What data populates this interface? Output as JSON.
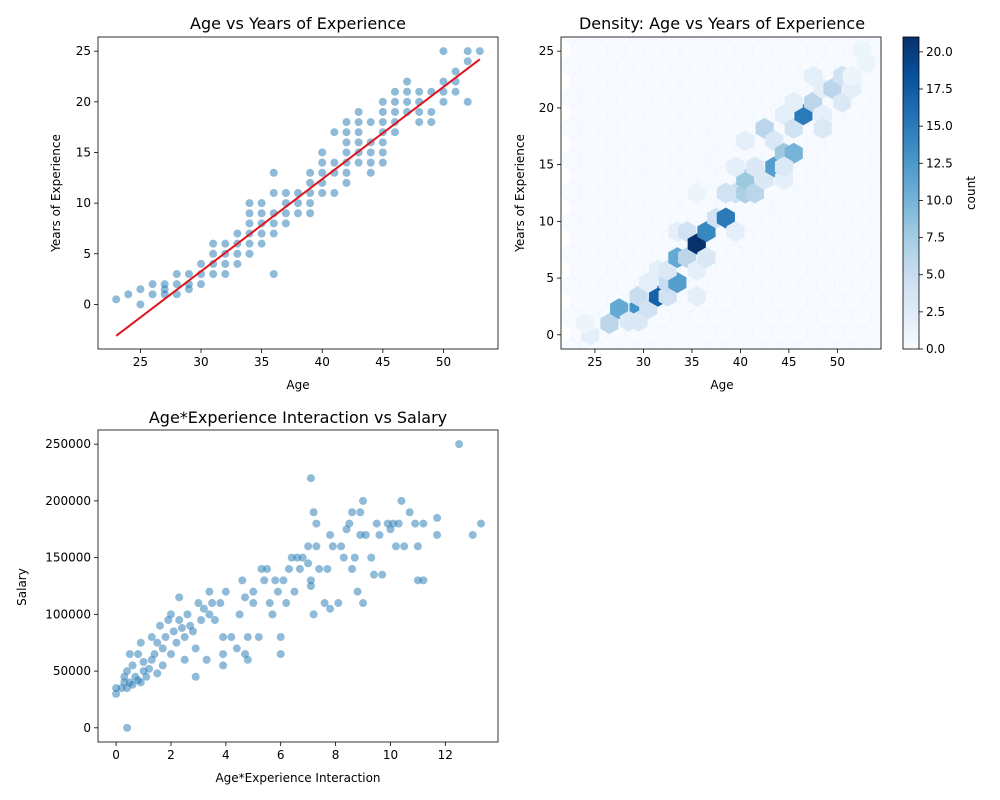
{
  "chart_data": [
    {
      "type": "scatter",
      "title": "Age vs Years of Experience",
      "xlabel": "Age",
      "ylabel": "Years of Experience",
      "xlim": [
        21.5,
        54.5
      ],
      "ylim": [
        -4.4,
        26.4
      ],
      "xticks": [
        25,
        30,
        35,
        40,
        45,
        50
      ],
      "yticks": [
        0,
        5,
        10,
        15,
        20,
        25
      ],
      "grid": false,
      "point_color": "#1f77b4",
      "points": [
        [
          23,
          0.5
        ],
        [
          24,
          1
        ],
        [
          25,
          0
        ],
        [
          25,
          1.5
        ],
        [
          26,
          1
        ],
        [
          26,
          2
        ],
        [
          27,
          1
        ],
        [
          27,
          1.5
        ],
        [
          27,
          2
        ],
        [
          28,
          1
        ],
        [
          28,
          2
        ],
        [
          28,
          3
        ],
        [
          29,
          1.5
        ],
        [
          29,
          2
        ],
        [
          29,
          3
        ],
        [
          30,
          2
        ],
        [
          30,
          3
        ],
        [
          30,
          4
        ],
        [
          31,
          3
        ],
        [
          31,
          4
        ],
        [
          31,
          5
        ],
        [
          31,
          6
        ],
        [
          32,
          3
        ],
        [
          32,
          4
        ],
        [
          32,
          5
        ],
        [
          32,
          6
        ],
        [
          33,
          4
        ],
        [
          33,
          5
        ],
        [
          33,
          6
        ],
        [
          33,
          7
        ],
        [
          34,
          5
        ],
        [
          34,
          6
        ],
        [
          34,
          7
        ],
        [
          34,
          8
        ],
        [
          34,
          9
        ],
        [
          34,
          10
        ],
        [
          35,
          6
        ],
        [
          35,
          7
        ],
        [
          35,
          8
        ],
        [
          35,
          9
        ],
        [
          35,
          10
        ],
        [
          36,
          3
        ],
        [
          36,
          7
        ],
        [
          36,
          8
        ],
        [
          36,
          9
        ],
        [
          36,
          11
        ],
        [
          36,
          13
        ],
        [
          37,
          8
        ],
        [
          37,
          9
        ],
        [
          37,
          10
        ],
        [
          37,
          11
        ],
        [
          38,
          9
        ],
        [
          38,
          10
        ],
        [
          38,
          11
        ],
        [
          39,
          9
        ],
        [
          39,
          10
        ],
        [
          39,
          11
        ],
        [
          39,
          12
        ],
        [
          39,
          13
        ],
        [
          40,
          11
        ],
        [
          40,
          12
        ],
        [
          40,
          13
        ],
        [
          40,
          14
        ],
        [
          40,
          15
        ],
        [
          41,
          11
        ],
        [
          41,
          13
        ],
        [
          41,
          14
        ],
        [
          41,
          17
        ],
        [
          42,
          12
        ],
        [
          42,
          13
        ],
        [
          42,
          14
        ],
        [
          42,
          15
        ],
        [
          42,
          16
        ],
        [
          42,
          17
        ],
        [
          42,
          18
        ],
        [
          43,
          14
        ],
        [
          43,
          15
        ],
        [
          43,
          16
        ],
        [
          43,
          17
        ],
        [
          43,
          18
        ],
        [
          43,
          19
        ],
        [
          44,
          13
        ],
        [
          44,
          14
        ],
        [
          44,
          15
        ],
        [
          44,
          16
        ],
        [
          44,
          18
        ],
        [
          45,
          14
        ],
        [
          45,
          15
        ],
        [
          45,
          16
        ],
        [
          45,
          17
        ],
        [
          45,
          18
        ],
        [
          45,
          19
        ],
        [
          45,
          20
        ],
        [
          46,
          17
        ],
        [
          46,
          18
        ],
        [
          46,
          19
        ],
        [
          46,
          20
        ],
        [
          46,
          21
        ],
        [
          47,
          19
        ],
        [
          47,
          20
        ],
        [
          47,
          21
        ],
        [
          47,
          22
        ],
        [
          48,
          18
        ],
        [
          48,
          19
        ],
        [
          48,
          20
        ],
        [
          48,
          21
        ],
        [
          49,
          18
        ],
        [
          49,
          19
        ],
        [
          49,
          21
        ],
        [
          50,
          20
        ],
        [
          50,
          21
        ],
        [
          50,
          22
        ],
        [
          50,
          25
        ],
        [
          51,
          21
        ],
        [
          51,
          22
        ],
        [
          51,
          23
        ],
        [
          52,
          20
        ],
        [
          52,
          24
        ],
        [
          52,
          25
        ],
        [
          53,
          25
        ]
      ],
      "fit_line": {
        "color": "#e0141e",
        "x": [
          23,
          53
        ],
        "y": [
          -3.1,
          24.2
        ]
      }
    },
    {
      "type": "heatmap",
      "subtype": "hexbin",
      "title": "Density: Age vs Years of Experience",
      "xlabel": "Age",
      "ylabel": "Years of Experience",
      "xlim": [
        21.5,
        54.5
      ],
      "ylim": [
        -1.25,
        26.25
      ],
      "xticks": [
        25,
        30,
        35,
        40,
        45,
        50
      ],
      "yticks": [
        0,
        5,
        10,
        15,
        20,
        25
      ],
      "colorbar": {
        "label": "count",
        "range": [
          0,
          21
        ],
        "ticks": [
          "0.0",
          "2.5",
          "5.0",
          "7.5",
          "10.0",
          "12.5",
          "15.0",
          "17.5",
          "20.0"
        ],
        "colors": [
          "#f7fbff",
          "#deebf7",
          "#c6dbef",
          "#9ecae1",
          "#6baed6",
          "#4292c6",
          "#2171b5",
          "#08519c",
          "#08306b"
        ]
      },
      "cells": [
        [
          24.5,
          0,
          2
        ],
        [
          24,
          1,
          1
        ],
        [
          26.5,
          1,
          6
        ],
        [
          27.5,
          2.3,
          11
        ],
        [
          29.5,
          2.3,
          13
        ],
        [
          28.5,
          1.2,
          3
        ],
        [
          29.5,
          1.2,
          3
        ],
        [
          29.5,
          3.4,
          5
        ],
        [
          30.5,
          2.3,
          4
        ],
        [
          31.5,
          3.4,
          17
        ],
        [
          30.5,
          4.6,
          2
        ],
        [
          32.5,
          3.4,
          4
        ],
        [
          31.5,
          5.7,
          2
        ],
        [
          32.5,
          4.6,
          5
        ],
        [
          33.5,
          4.6,
          12
        ],
        [
          32.5,
          5.7,
          3
        ],
        [
          33.5,
          6.8,
          11
        ],
        [
          34.5,
          6.8,
          6
        ],
        [
          35.5,
          5.7,
          2
        ],
        [
          33.5,
          9.1,
          2
        ],
        [
          34.5,
          9.1,
          4
        ],
        [
          35.5,
          8,
          21
        ],
        [
          36.5,
          9.1,
          14
        ],
        [
          36.5,
          6.8,
          3
        ],
        [
          35.5,
          3.4,
          2
        ],
        [
          35.5,
          12.5,
          1
        ],
        [
          37.5,
          10.3,
          4
        ],
        [
          38.5,
          10.3,
          15
        ],
        [
          39.5,
          9.1,
          2
        ],
        [
          38.5,
          12.5,
          4
        ],
        [
          39.5,
          12.5,
          4
        ],
        [
          40.5,
          12.5,
          7
        ],
        [
          40.5,
          13.7,
          8
        ],
        [
          39.5,
          14.8,
          2
        ],
        [
          40.5,
          17.1,
          2
        ],
        [
          41.5,
          12.5,
          6
        ],
        [
          41.5,
          14.8,
          3
        ],
        [
          42.5,
          13.7,
          3
        ],
        [
          42.5,
          18.2,
          6
        ],
        [
          43.5,
          14.8,
          12
        ],
        [
          43.5,
          17.1,
          3
        ],
        [
          44.5,
          13.7,
          2
        ],
        [
          44.5,
          16,
          8
        ],
        [
          45.5,
          16,
          10
        ],
        [
          44.5,
          14.8,
          3
        ],
        [
          44.5,
          19.4,
          2
        ],
        [
          45.5,
          18.2,
          4
        ],
        [
          46.5,
          19.4,
          15
        ],
        [
          45.5,
          20.5,
          2
        ],
        [
          47.5,
          20.5,
          6
        ],
        [
          47.5,
          22.8,
          2
        ],
        [
          48.5,
          19.4,
          2
        ],
        [
          48.5,
          18.2,
          3
        ],
        [
          48.5,
          21.7,
          2
        ],
        [
          49.5,
          21.7,
          6
        ],
        [
          50.5,
          22.8,
          4
        ],
        [
          50.5,
          20.5,
          3
        ],
        [
          51.5,
          21.7,
          2
        ],
        [
          51.5,
          22.8,
          1
        ],
        [
          52.5,
          25.1,
          1
        ],
        [
          53,
          24,
          1
        ]
      ]
    },
    {
      "type": "scatter",
      "title": "Age*Experience Interaction vs Salary",
      "xlabel": "Age*Experience Interaction",
      "ylabel": "Salary",
      "xlim": [
        -0.66,
        13.92
      ],
      "ylim": [
        -12500,
        262500
      ],
      "xticks": [
        0,
        2,
        4,
        6,
        8,
        10,
        12
      ],
      "yticks": [
        0,
        50000,
        100000,
        150000,
        200000,
        250000
      ],
      "grid": false,
      "point_color": "#1f77b4",
      "points": [
        [
          0,
          30000
        ],
        [
          0,
          35000
        ],
        [
          0.2,
          35000
        ],
        [
          0.3,
          40000
        ],
        [
          0.3,
          45000
        ],
        [
          0.4,
          35000
        ],
        [
          0.4,
          50000
        ],
        [
          0.4,
          0
        ],
        [
          0.5,
          40000
        ],
        [
          0.5,
          65000
        ],
        [
          0.6,
          55000
        ],
        [
          0.6,
          38000
        ],
        [
          0.7,
          45000
        ],
        [
          0.8,
          42000
        ],
        [
          0.8,
          65000
        ],
        [
          0.9,
          40000
        ],
        [
          0.9,
          75000
        ],
        [
          1.0,
          50000
        ],
        [
          1.0,
          58000
        ],
        [
          1.1,
          45000
        ],
        [
          1.2,
          52000
        ],
        [
          1.3,
          60000
        ],
        [
          1.3,
          80000
        ],
        [
          1.4,
          65000
        ],
        [
          1.5,
          48000
        ],
        [
          1.5,
          75000
        ],
        [
          1.6,
          90000
        ],
        [
          1.7,
          55000
        ],
        [
          1.7,
          70000
        ],
        [
          1.8,
          80000
        ],
        [
          1.9,
          95000
        ],
        [
          2.0,
          100000
        ],
        [
          2.0,
          65000
        ],
        [
          2.1,
          85000
        ],
        [
          2.2,
          75000
        ],
        [
          2.3,
          95000
        ],
        [
          2.3,
          115000
        ],
        [
          2.4,
          88000
        ],
        [
          2.5,
          60000
        ],
        [
          2.5,
          80000
        ],
        [
          2.6,
          100000
        ],
        [
          2.7,
          90000
        ],
        [
          2.8,
          85000
        ],
        [
          2.9,
          70000
        ],
        [
          2.9,
          45000
        ],
        [
          3.0,
          110000
        ],
        [
          3.1,
          95000
        ],
        [
          3.2,
          105000
        ],
        [
          3.3,
          60000
        ],
        [
          3.4,
          100000
        ],
        [
          3.4,
          120000
        ],
        [
          3.5,
          110000
        ],
        [
          3.6,
          95000
        ],
        [
          3.8,
          110000
        ],
        [
          3.9,
          80000
        ],
        [
          3.9,
          65000
        ],
        [
          3.9,
          55000
        ],
        [
          4.0,
          120000
        ],
        [
          4.2,
          80000
        ],
        [
          4.4,
          70000
        ],
        [
          4.5,
          100000
        ],
        [
          4.6,
          130000
        ],
        [
          4.7,
          115000
        ],
        [
          4.7,
          65000
        ],
        [
          4.8,
          80000
        ],
        [
          4.8,
          60000
        ],
        [
          5.0,
          110000
        ],
        [
          5.0,
          120000
        ],
        [
          5.2,
          80000
        ],
        [
          5.3,
          140000
        ],
        [
          5.4,
          130000
        ],
        [
          5.5,
          140000
        ],
        [
          5.6,
          110000
        ],
        [
          5.7,
          100000
        ],
        [
          5.8,
          130000
        ],
        [
          5.9,
          120000
        ],
        [
          6.0,
          80000
        ],
        [
          6.0,
          65000
        ],
        [
          6.1,
          130000
        ],
        [
          6.2,
          110000
        ],
        [
          6.3,
          140000
        ],
        [
          6.4,
          150000
        ],
        [
          6.5,
          120000
        ],
        [
          6.6,
          150000
        ],
        [
          6.7,
          140000
        ],
        [
          6.8,
          150000
        ],
        [
          7.0,
          145000
        ],
        [
          7.0,
          160000
        ],
        [
          7.1,
          220000
        ],
        [
          7.1,
          130000
        ],
        [
          7.1,
          125000
        ],
        [
          7.2,
          100000
        ],
        [
          7.2,
          190000
        ],
        [
          7.3,
          180000
        ],
        [
          7.3,
          160000
        ],
        [
          7.4,
          140000
        ],
        [
          7.6,
          110000
        ],
        [
          7.7,
          140000
        ],
        [
          7.8,
          170000
        ],
        [
          7.8,
          105000
        ],
        [
          7.9,
          160000
        ],
        [
          8.1,
          110000
        ],
        [
          8.2,
          160000
        ],
        [
          8.3,
          150000
        ],
        [
          8.4,
          175000
        ],
        [
          8.5,
          180000
        ],
        [
          8.6,
          190000
        ],
        [
          8.6,
          140000
        ],
        [
          8.7,
          150000
        ],
        [
          8.8,
          120000
        ],
        [
          8.9,
          190000
        ],
        [
          8.9,
          170000
        ],
        [
          9.0,
          200000
        ],
        [
          9.0,
          110000
        ],
        [
          9.1,
          170000
        ],
        [
          9.3,
          150000
        ],
        [
          9.4,
          135000
        ],
        [
          9.5,
          180000
        ],
        [
          9.6,
          170000
        ],
        [
          9.7,
          135000
        ],
        [
          9.9,
          180000
        ],
        [
          10.0,
          175000
        ],
        [
          10.1,
          180000
        ],
        [
          10.2,
          160000
        ],
        [
          10.3,
          180000
        ],
        [
          10.4,
          200000
        ],
        [
          10.5,
          160000
        ],
        [
          10.7,
          190000
        ],
        [
          10.9,
          180000
        ],
        [
          11.0,
          160000
        ],
        [
          11.0,
          130000
        ],
        [
          11.2,
          130000
        ],
        [
          11.2,
          180000
        ],
        [
          11.7,
          185000
        ],
        [
          11.7,
          170000
        ],
        [
          12.5,
          250000
        ],
        [
          13.0,
          170000
        ],
        [
          13.3,
          180000
        ]
      ]
    }
  ]
}
